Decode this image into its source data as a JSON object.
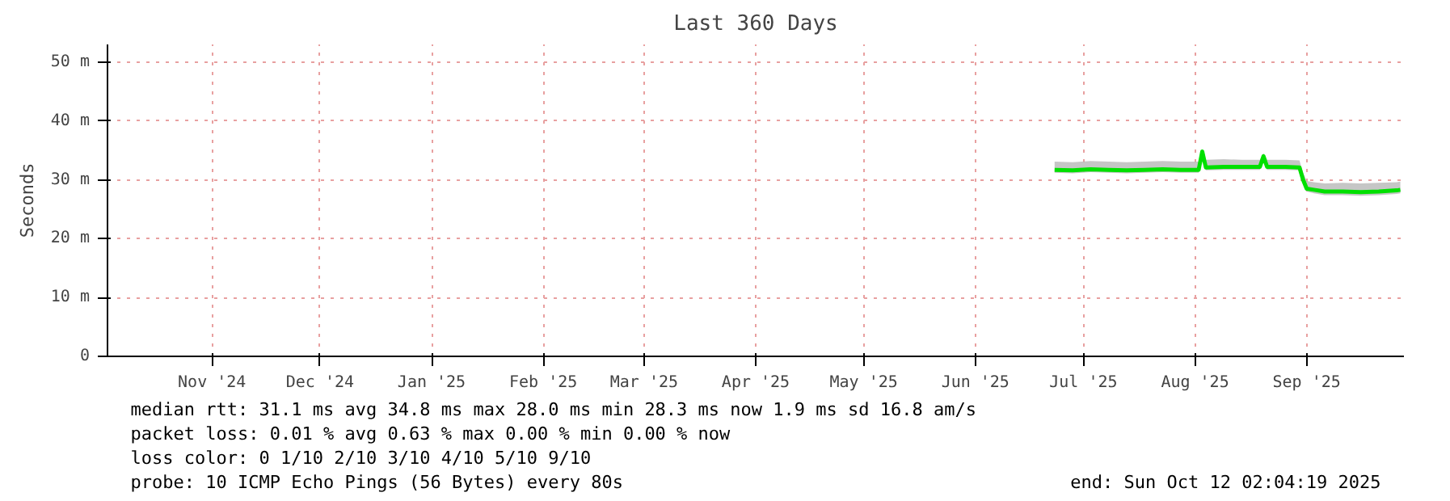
{
  "chart_data": {
    "type": "line",
    "title": "Last 360 Days",
    "ylabel": "Seconds",
    "x": [
      "2025-07-07",
      "2025-07-12",
      "2025-07-17",
      "2025-07-22",
      "2025-07-27",
      "2025-08-01",
      "2025-08-06",
      "2025-08-11",
      "2025-08-16",
      "2025-08-17",
      "2025-08-18",
      "2025-08-23",
      "2025-08-28",
      "2025-09-02",
      "2025-09-03",
      "2025-09-04",
      "2025-09-09",
      "2025-09-13",
      "2025-09-14",
      "2025-09-15",
      "2025-09-17",
      "2025-09-20",
      "2025-09-25",
      "2025-09-30",
      "2025-10-05",
      "2025-10-10",
      "2025-10-11"
    ],
    "series": [
      {
        "color": "#00e000",
        "values": [
          31.7,
          31.6,
          31.8,
          31.7,
          31.6,
          31.7,
          31.8,
          31.7,
          31.7,
          34.8,
          32.1,
          32.2,
          32.2,
          32.2,
          34.0,
          32.2,
          32.2,
          32.1,
          30.0,
          28.5,
          28.3,
          28.0,
          28.0,
          27.9,
          28.0,
          28.2,
          28.3
        ],
        "lower": [
          31.2,
          31.1,
          31.3,
          31.2,
          31.1,
          31.2,
          31.3,
          31.2,
          31.2,
          33.5,
          31.6,
          31.7,
          31.7,
          31.7,
          33.0,
          31.7,
          31.7,
          31.6,
          29.5,
          28.0,
          27.7,
          27.4,
          27.4,
          27.3,
          27.4,
          27.6,
          27.7
        ],
        "upper": [
          33.1,
          33.0,
          33.2,
          33.1,
          33.0,
          33.1,
          33.2,
          33.1,
          33.1,
          35.2,
          33.4,
          33.5,
          33.4,
          33.4,
          34.5,
          33.4,
          33.4,
          33.3,
          31.2,
          29.8,
          29.6,
          29.4,
          29.5,
          29.4,
          29.5,
          29.6,
          29.7
        ]
      }
    ],
    "xlim": [
      "2024-10-17",
      "2025-10-12"
    ],
    "xticks": [
      {
        "value": "2024-11-15",
        "label": "Nov '24"
      },
      {
        "value": "2024-12-15",
        "label": "Dec '24"
      },
      {
        "value": "2025-01-15",
        "label": "Jan '25"
      },
      {
        "value": "2025-02-15",
        "label": "Feb '25"
      },
      {
        "value": "2025-03-15",
        "label": "Mar '25"
      },
      {
        "value": "2025-04-15",
        "label": "Apr '25"
      },
      {
        "value": "2025-05-15",
        "label": "May '25"
      },
      {
        "value": "2025-06-15",
        "label": "Jun '25"
      },
      {
        "value": "2025-07-15",
        "label": "Jul '25"
      },
      {
        "value": "2025-08-15",
        "label": "Aug '25"
      },
      {
        "value": "2025-09-15",
        "label": "Sep '25"
      }
    ],
    "ylim": [
      0,
      53
    ],
    "yticks": [
      0,
      {
        "value": 10,
        "label": "10 m"
      },
      {
        "value": 20,
        "label": "20 m"
      },
      {
        "value": 30,
        "label": "30 m"
      },
      {
        "value": 40,
        "label": "40 m"
      },
      {
        "value": 50,
        "label": "50 m"
      }
    ],
    "grid": true,
    "marker": "none",
    "line_style": "solid",
    "annotations": [
      "median rtt:  31.1 ms avg  34.8 ms max  28.0 ms min  28.3 ms now  1.9 ms sd  16.8   am/s",
      "packet loss: 0.01 % avg  0.63 % max  0.00 % min  0.00 % now",
      "loss color:  0  1/10  2/10  3/10  4/10  5/10  9/10",
      "probe:       10 ICMP Echo Pings (56 Bytes) every 80s",
      "end: Sun Oct 12 02:04:19 2025"
    ]
  }
}
